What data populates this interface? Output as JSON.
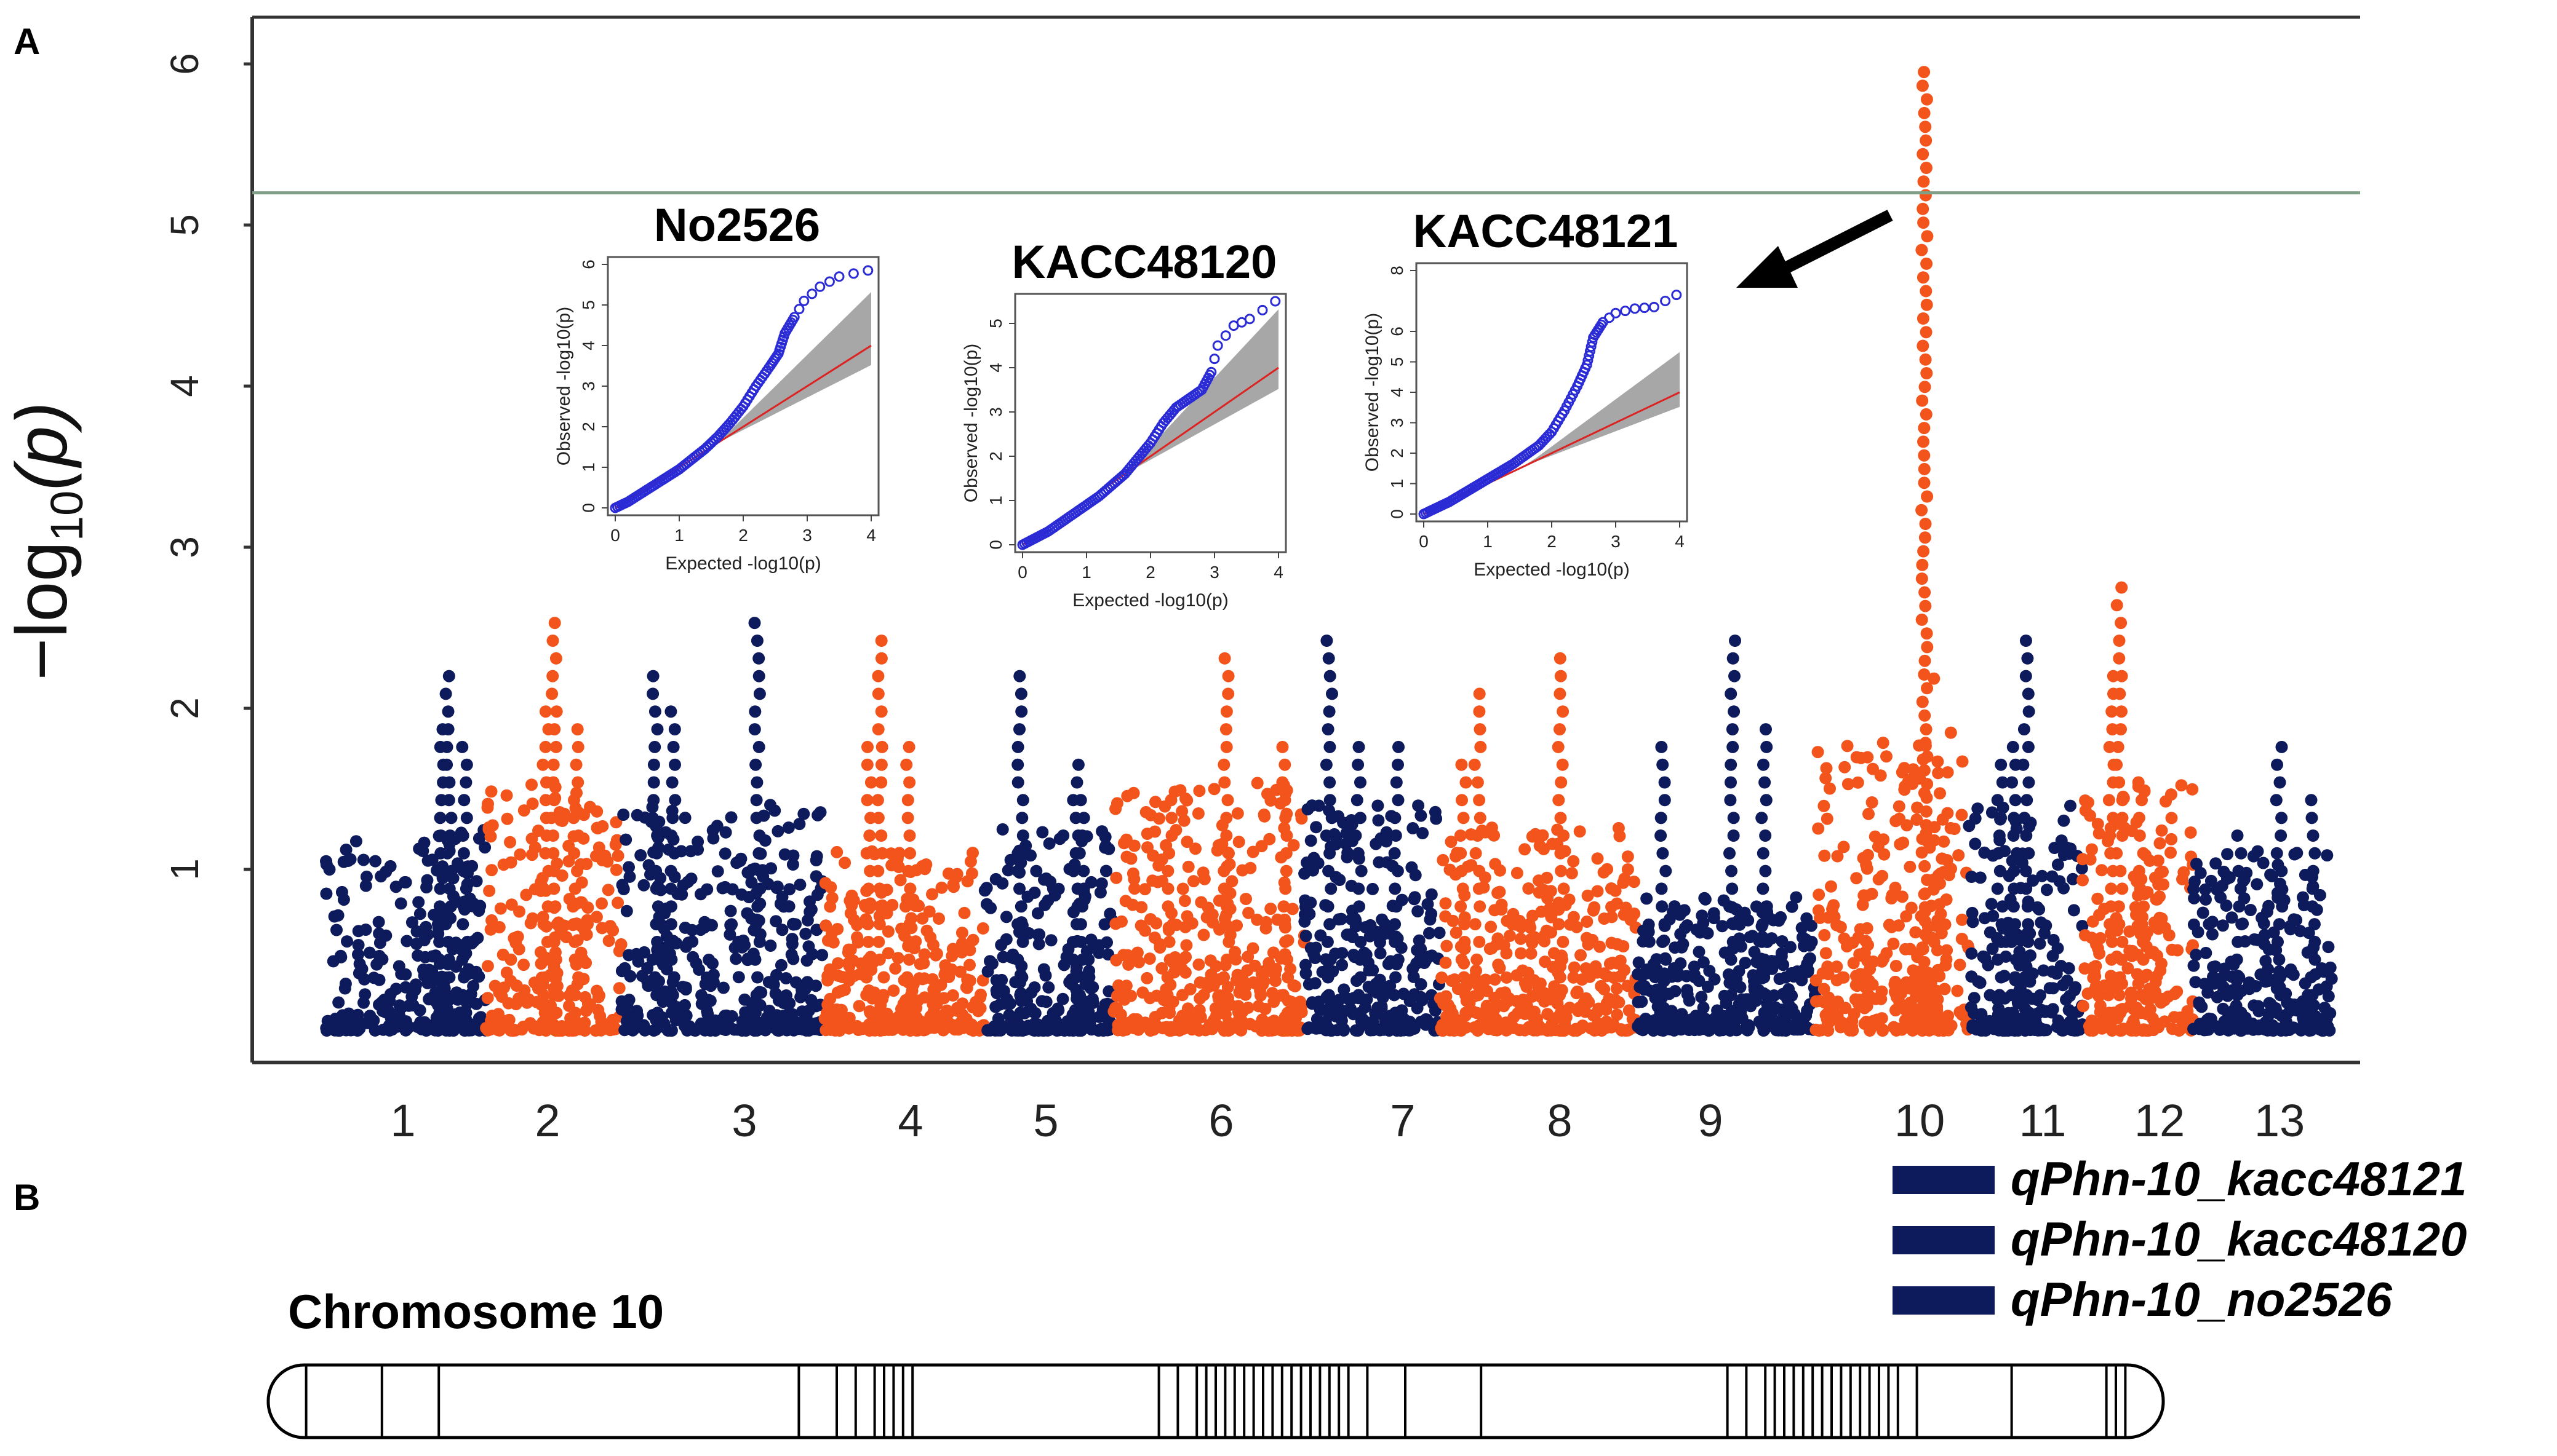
{
  "panel_labels": {
    "a": "A",
    "b": "B"
  },
  "colors": {
    "navy": "#0d1a5c",
    "orange": "#f2541c",
    "qq_point": "#2b2bd6",
    "qq_line": "#dd2222",
    "qq_band": "#8a8a8a",
    "threshold": "#7f9f86"
  },
  "chart_data": [
    {
      "type": "scatter",
      "name": "Manhattan plot",
      "ylabel": "-log10(p)",
      "ylabel_base": "−log",
      "ylabel_sub": "10",
      "ylabel_arg": "(p)",
      "ylim": [
        0,
        6.25
      ],
      "yticks": [
        1,
        2,
        3,
        4,
        5,
        6
      ],
      "threshold": 5.2,
      "chromosomes": [
        {
          "label": "1",
          "color": "navy",
          "peak": 2.3,
          "level": 0.9
        },
        {
          "label": "2",
          "color": "orange",
          "peak": 2.6,
          "level": 1.1
        },
        {
          "label": "3",
          "color": "navy",
          "peak": 2.6,
          "level": 1.0
        },
        {
          "label": "4",
          "color": "orange",
          "peak": 2.45,
          "level": 0.8
        },
        {
          "label": "5",
          "color": "navy",
          "peak": 2.3,
          "level": 0.9
        },
        {
          "label": "6",
          "color": "orange",
          "peak": 2.35,
          "level": 1.1
        },
        {
          "label": "7",
          "color": "navy",
          "peak": 2.45,
          "level": 1.0
        },
        {
          "label": "8",
          "color": "orange",
          "peak": 2.4,
          "level": 0.9
        },
        {
          "label": "9",
          "color": "navy",
          "peak": 2.45,
          "level": 0.6
        },
        {
          "label": "10",
          "color": "orange",
          "peak": 6.0,
          "level": 1.3
        },
        {
          "label": "11",
          "color": "navy",
          "peak": 2.5,
          "level": 1.0
        },
        {
          "label": "12",
          "color": "orange",
          "peak": 2.75,
          "level": 1.1
        },
        {
          "label": "13",
          "color": "navy",
          "peak": 1.8,
          "level": 0.8
        }
      ]
    },
    {
      "type": "scatter",
      "name": "QQ plot No2526",
      "title": "No2526",
      "xlabel": "Expected  -log10(p)",
      "ylabel": "Observed  -log10(p)",
      "xlim": [
        0,
        4
      ],
      "ylim": [
        0,
        6
      ],
      "xticks": [
        "0",
        "1",
        "2",
        "3",
        "4"
      ],
      "yticks": [
        "0",
        "1",
        "2",
        "3",
        "4",
        "5",
        "6"
      ],
      "points": [
        [
          0.0,
          0.0
        ],
        [
          0.2,
          0.15
        ],
        [
          0.4,
          0.35
        ],
        [
          0.6,
          0.55
        ],
        [
          0.8,
          0.75
        ],
        [
          1.0,
          0.95
        ],
        [
          1.2,
          1.2
        ],
        [
          1.4,
          1.45
        ],
        [
          1.6,
          1.75
        ],
        [
          1.8,
          2.1
        ],
        [
          2.0,
          2.5
        ],
        [
          2.2,
          3.0
        ],
        [
          2.4,
          3.45
        ],
        [
          2.55,
          3.8
        ],
        [
          2.65,
          4.3
        ],
        [
          2.8,
          4.7
        ],
        [
          2.95,
          5.1
        ],
        [
          3.2,
          5.45
        ],
        [
          3.5,
          5.7
        ],
        [
          3.95,
          5.85
        ]
      ]
    },
    {
      "type": "scatter",
      "name": "QQ plot KACC48120",
      "title": "KACC48120",
      "xlabel": "Expected  -log10(p)",
      "ylabel": "Observed  -log10(p)",
      "xlim": [
        0,
        4
      ],
      "ylim": [
        0,
        5.5
      ],
      "xticks": [
        "0",
        "1",
        "2",
        "3",
        "4"
      ],
      "yticks": [
        "0",
        "1",
        "2",
        "3",
        "4",
        "5"
      ],
      "points": [
        [
          0.0,
          0.0
        ],
        [
          0.2,
          0.15
        ],
        [
          0.4,
          0.3
        ],
        [
          0.6,
          0.5
        ],
        [
          0.8,
          0.7
        ],
        [
          1.0,
          0.9
        ],
        [
          1.2,
          1.1
        ],
        [
          1.4,
          1.35
        ],
        [
          1.6,
          1.6
        ],
        [
          1.8,
          1.95
        ],
        [
          2.0,
          2.3
        ],
        [
          2.2,
          2.75
        ],
        [
          2.4,
          3.1
        ],
        [
          2.6,
          3.3
        ],
        [
          2.8,
          3.5
        ],
        [
          2.95,
          3.9
        ],
        [
          3.05,
          4.5
        ],
        [
          3.3,
          4.95
        ],
        [
          3.55,
          5.1
        ],
        [
          3.95,
          5.5
        ]
      ]
    },
    {
      "type": "scatter",
      "name": "QQ plot KACC48121",
      "title": "KACC48121",
      "xlabel": "Expected  -log10(p)",
      "ylabel": "Observed  -log10(p)",
      "xlim": [
        0,
        4
      ],
      "ylim": [
        0,
        8
      ],
      "xticks": [
        "0",
        "1",
        "2",
        "3",
        "4"
      ],
      "yticks": [
        "0",
        "1",
        "2",
        "3",
        "4",
        "5",
        "6",
        "8"
      ],
      "points": [
        [
          0.0,
          0.0
        ],
        [
          0.2,
          0.2
        ],
        [
          0.4,
          0.4
        ],
        [
          0.6,
          0.65
        ],
        [
          0.8,
          0.9
        ],
        [
          1.0,
          1.15
        ],
        [
          1.2,
          1.4
        ],
        [
          1.4,
          1.65
        ],
        [
          1.6,
          1.95
        ],
        [
          1.8,
          2.25
        ],
        [
          2.0,
          2.7
        ],
        [
          2.2,
          3.4
        ],
        [
          2.4,
          4.2
        ],
        [
          2.55,
          4.9
        ],
        [
          2.65,
          5.8
        ],
        [
          2.8,
          6.3
        ],
        [
          3.0,
          6.6
        ],
        [
          3.3,
          6.75
        ],
        [
          3.6,
          6.8
        ],
        [
          3.95,
          7.2
        ]
      ]
    }
  ],
  "legend": {
    "items": [
      "qPhn-10_kacc48121",
      "qPhn-10_kacc48120",
      "qPhn-10_no2526"
    ]
  },
  "chromosome_map": {
    "title": "Chromosome 10",
    "bands": [
      0.02,
      0.06,
      0.09,
      0.28,
      0.3,
      0.31,
      0.32,
      0.325,
      0.33,
      0.335,
      0.34,
      0.47,
      0.48,
      0.49,
      0.495,
      0.5,
      0.505,
      0.51,
      0.515,
      0.52,
      0.525,
      0.53,
      0.535,
      0.54,
      0.545,
      0.55,
      0.555,
      0.56,
      0.565,
      0.57,
      0.58,
      0.6,
      0.64,
      0.77,
      0.78,
      0.79,
      0.795,
      0.8,
      0.805,
      0.81,
      0.815,
      0.82,
      0.825,
      0.83,
      0.835,
      0.84,
      0.845,
      0.85,
      0.855,
      0.86,
      0.87,
      0.92,
      0.97,
      0.975,
      0.98
    ]
  }
}
